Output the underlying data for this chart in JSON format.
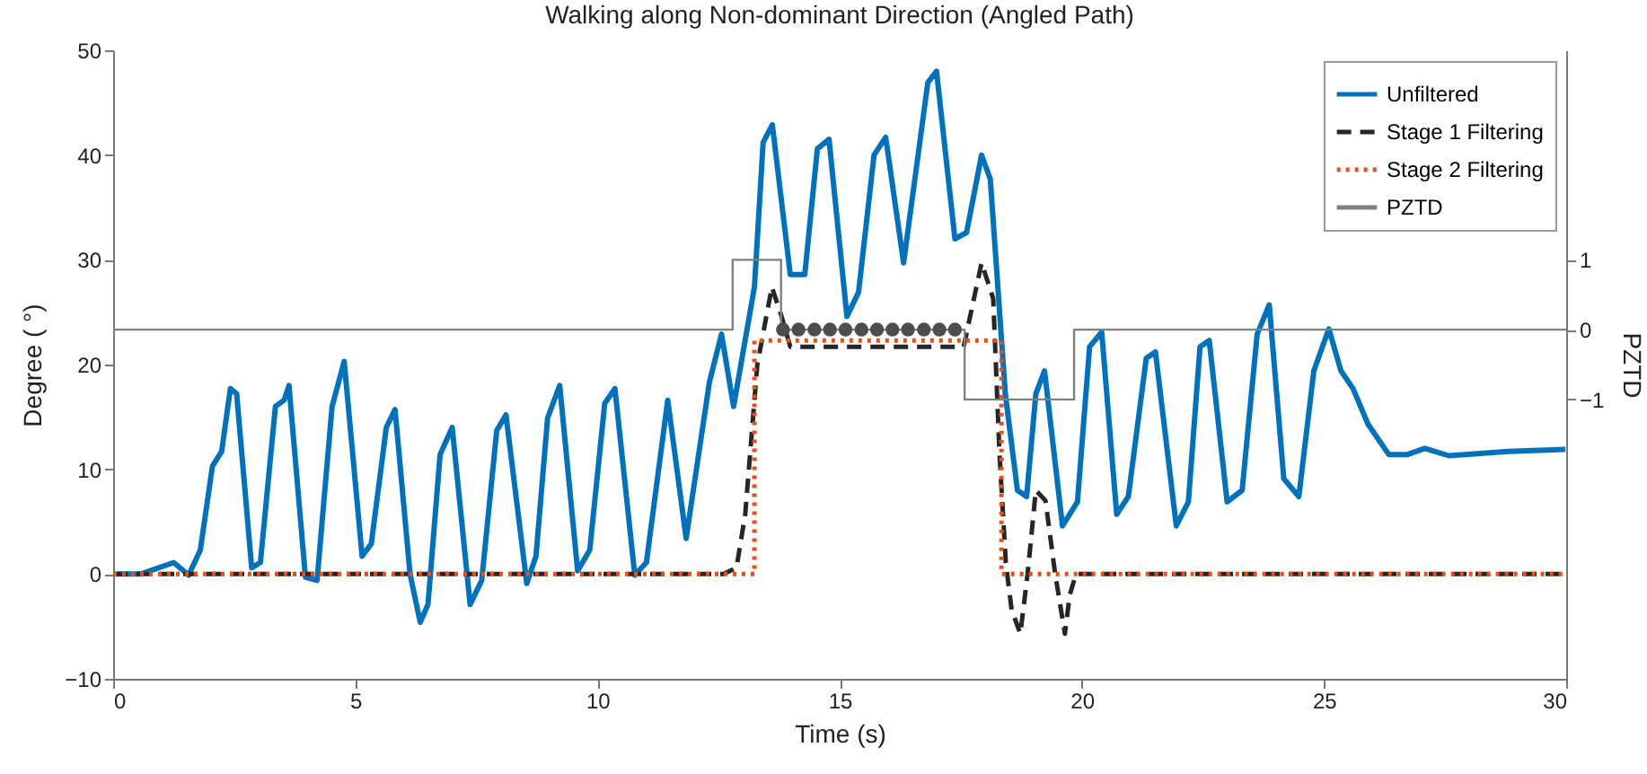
{
  "chart_data": {
    "type": "line",
    "title": "Walking along Non-dominant Direction (Angled Path)",
    "xlabel": "Time (s)",
    "ylabel": "Degree ( °)",
    "y2label": "PZTD",
    "xlim": [
      0,
      30
    ],
    "xticks": [
      0,
      5,
      10,
      15,
      20,
      25,
      30
    ],
    "ylim": [
      -10,
      50
    ],
    "yticks": [
      -10,
      0,
      10,
      20,
      30,
      40,
      50
    ],
    "y2lim": [
      -5,
      4
    ],
    "y2ticks": [
      -1,
      0,
      1
    ],
    "legend": "top right",
    "grid": false,
    "series": [
      {
        "name": "Unfiltered",
        "color": "#0072bd",
        "line_style": "solid",
        "x": [
          0.07,
          0.57,
          0.82,
          1.25,
          1.56,
          1.8,
          2.05,
          2.24,
          2.42,
          2.55,
          2.86,
          3.04,
          3.35,
          3.53,
          3.63,
          3.97,
          4.21,
          4.52,
          4.77,
          5.14,
          5.33,
          5.64,
          5.82,
          6.13,
          6.34,
          6.5,
          6.75,
          7.0,
          7.37,
          7.61,
          7.92,
          8.11,
          8.54,
          8.73,
          8.97,
          9.22,
          9.59,
          9.84,
          10.15,
          10.36,
          10.77,
          11.01,
          11.45,
          11.83,
          12.31,
          12.56,
          12.81,
          13.24,
          13.42,
          13.61,
          13.98,
          14.28,
          14.54,
          14.78,
          15.15,
          15.39,
          15.71,
          15.95,
          16.32,
          16.82,
          17.0,
          17.38,
          17.62,
          17.93,
          18.11,
          18.42,
          18.67,
          18.86,
          19.05,
          19.23,
          19.6,
          19.91,
          20.16,
          20.41,
          20.72,
          20.96,
          21.33,
          21.52,
          21.95,
          22.2,
          22.44,
          22.63,
          23.0,
          23.31,
          23.62,
          23.87,
          24.17,
          24.48,
          24.79,
          25.1,
          25.35,
          25.6,
          25.91,
          26.34,
          26.71,
          27.08,
          27.58,
          28.81,
          29.98
        ],
        "values": [
          0,
          0,
          0.4,
          1.1,
          -0.1,
          2.3,
          10.3,
          11.7,
          17.7,
          17.2,
          0.6,
          1.1,
          16,
          16.6,
          18,
          -0.3,
          -0.6,
          16,
          20.3,
          1.7,
          2.9,
          14,
          15.7,
          0,
          -4.6,
          -2.9,
          11.4,
          14,
          -2.9,
          -0.6,
          13.7,
          15.2,
          -0.9,
          1.7,
          14.9,
          18,
          0.3,
          2.3,
          16.3,
          17.7,
          -0.1,
          1.1,
          16.6,
          3.4,
          18.3,
          22.9,
          16,
          27.4,
          41.2,
          42.9,
          28.6,
          28.6,
          40.6,
          41.5,
          24.6,
          26.9,
          40,
          41.7,
          29.7,
          46.9,
          48,
          32,
          32.6,
          40,
          37.7,
          17.2,
          8,
          7.4,
          17.2,
          19.4,
          4.6,
          6.9,
          21.7,
          23.1,
          5.7,
          7.4,
          20.6,
          21.2,
          4.6,
          6.9,
          21.7,
          22.3,
          6.9,
          8,
          22.9,
          25.7,
          9.1,
          7.4,
          19.4,
          23.4,
          19.4,
          17.7,
          14.3,
          11.4,
          11.4,
          12,
          11.3,
          11.7,
          11.9
        ]
      },
      {
        "name": "Stage 1 Filtering",
        "color": "#262626",
        "line_style": "dashed",
        "x": [
          0,
          12.6,
          12.87,
          13.05,
          13.3,
          13.6,
          13.8,
          13.98,
          17.56,
          17.93,
          18.17,
          18.3,
          18.43,
          18.55,
          18.73,
          18.88,
          19.05,
          19.25,
          19.45,
          19.65,
          19.75,
          19.88,
          30
        ],
        "values": [
          0,
          0,
          0.6,
          5.7,
          20,
          27.4,
          24.6,
          21.7,
          21.7,
          29.7,
          26.3,
          11.5,
          1.1,
          -3.4,
          -5.7,
          0,
          8,
          7,
          0,
          -5.7,
          -2,
          0,
          0
        ]
      },
      {
        "name": "Stage 2 Filtering",
        "type": "step",
        "color": "#e8501a",
        "line_style": "dotted",
        "x": [
          0,
          13.24,
          18.34,
          30
        ],
        "values": [
          0,
          22.3,
          0,
          0
        ]
      },
      {
        "name": "PZTD",
        "type": "step",
        "color": "#808080",
        "line_style": "solid",
        "axis": "y2",
        "x": [
          0,
          12.79,
          13.79,
          17.58,
          19.84,
          30
        ],
        "values": [
          0,
          1,
          0,
          -1,
          0,
          0
        ]
      },
      {
        "type": "scatter",
        "color": "#4d4d4d",
        "marker": "circle",
        "axis": "y2",
        "x": [
          13.83,
          14.15,
          14.48,
          14.8,
          15.12,
          15.45,
          15.77,
          16.09,
          16.41,
          16.74,
          17.06,
          17.38
        ],
        "values": [
          0,
          0,
          0,
          0,
          0,
          0,
          0,
          0,
          0,
          0,
          0,
          0
        ]
      }
    ]
  }
}
